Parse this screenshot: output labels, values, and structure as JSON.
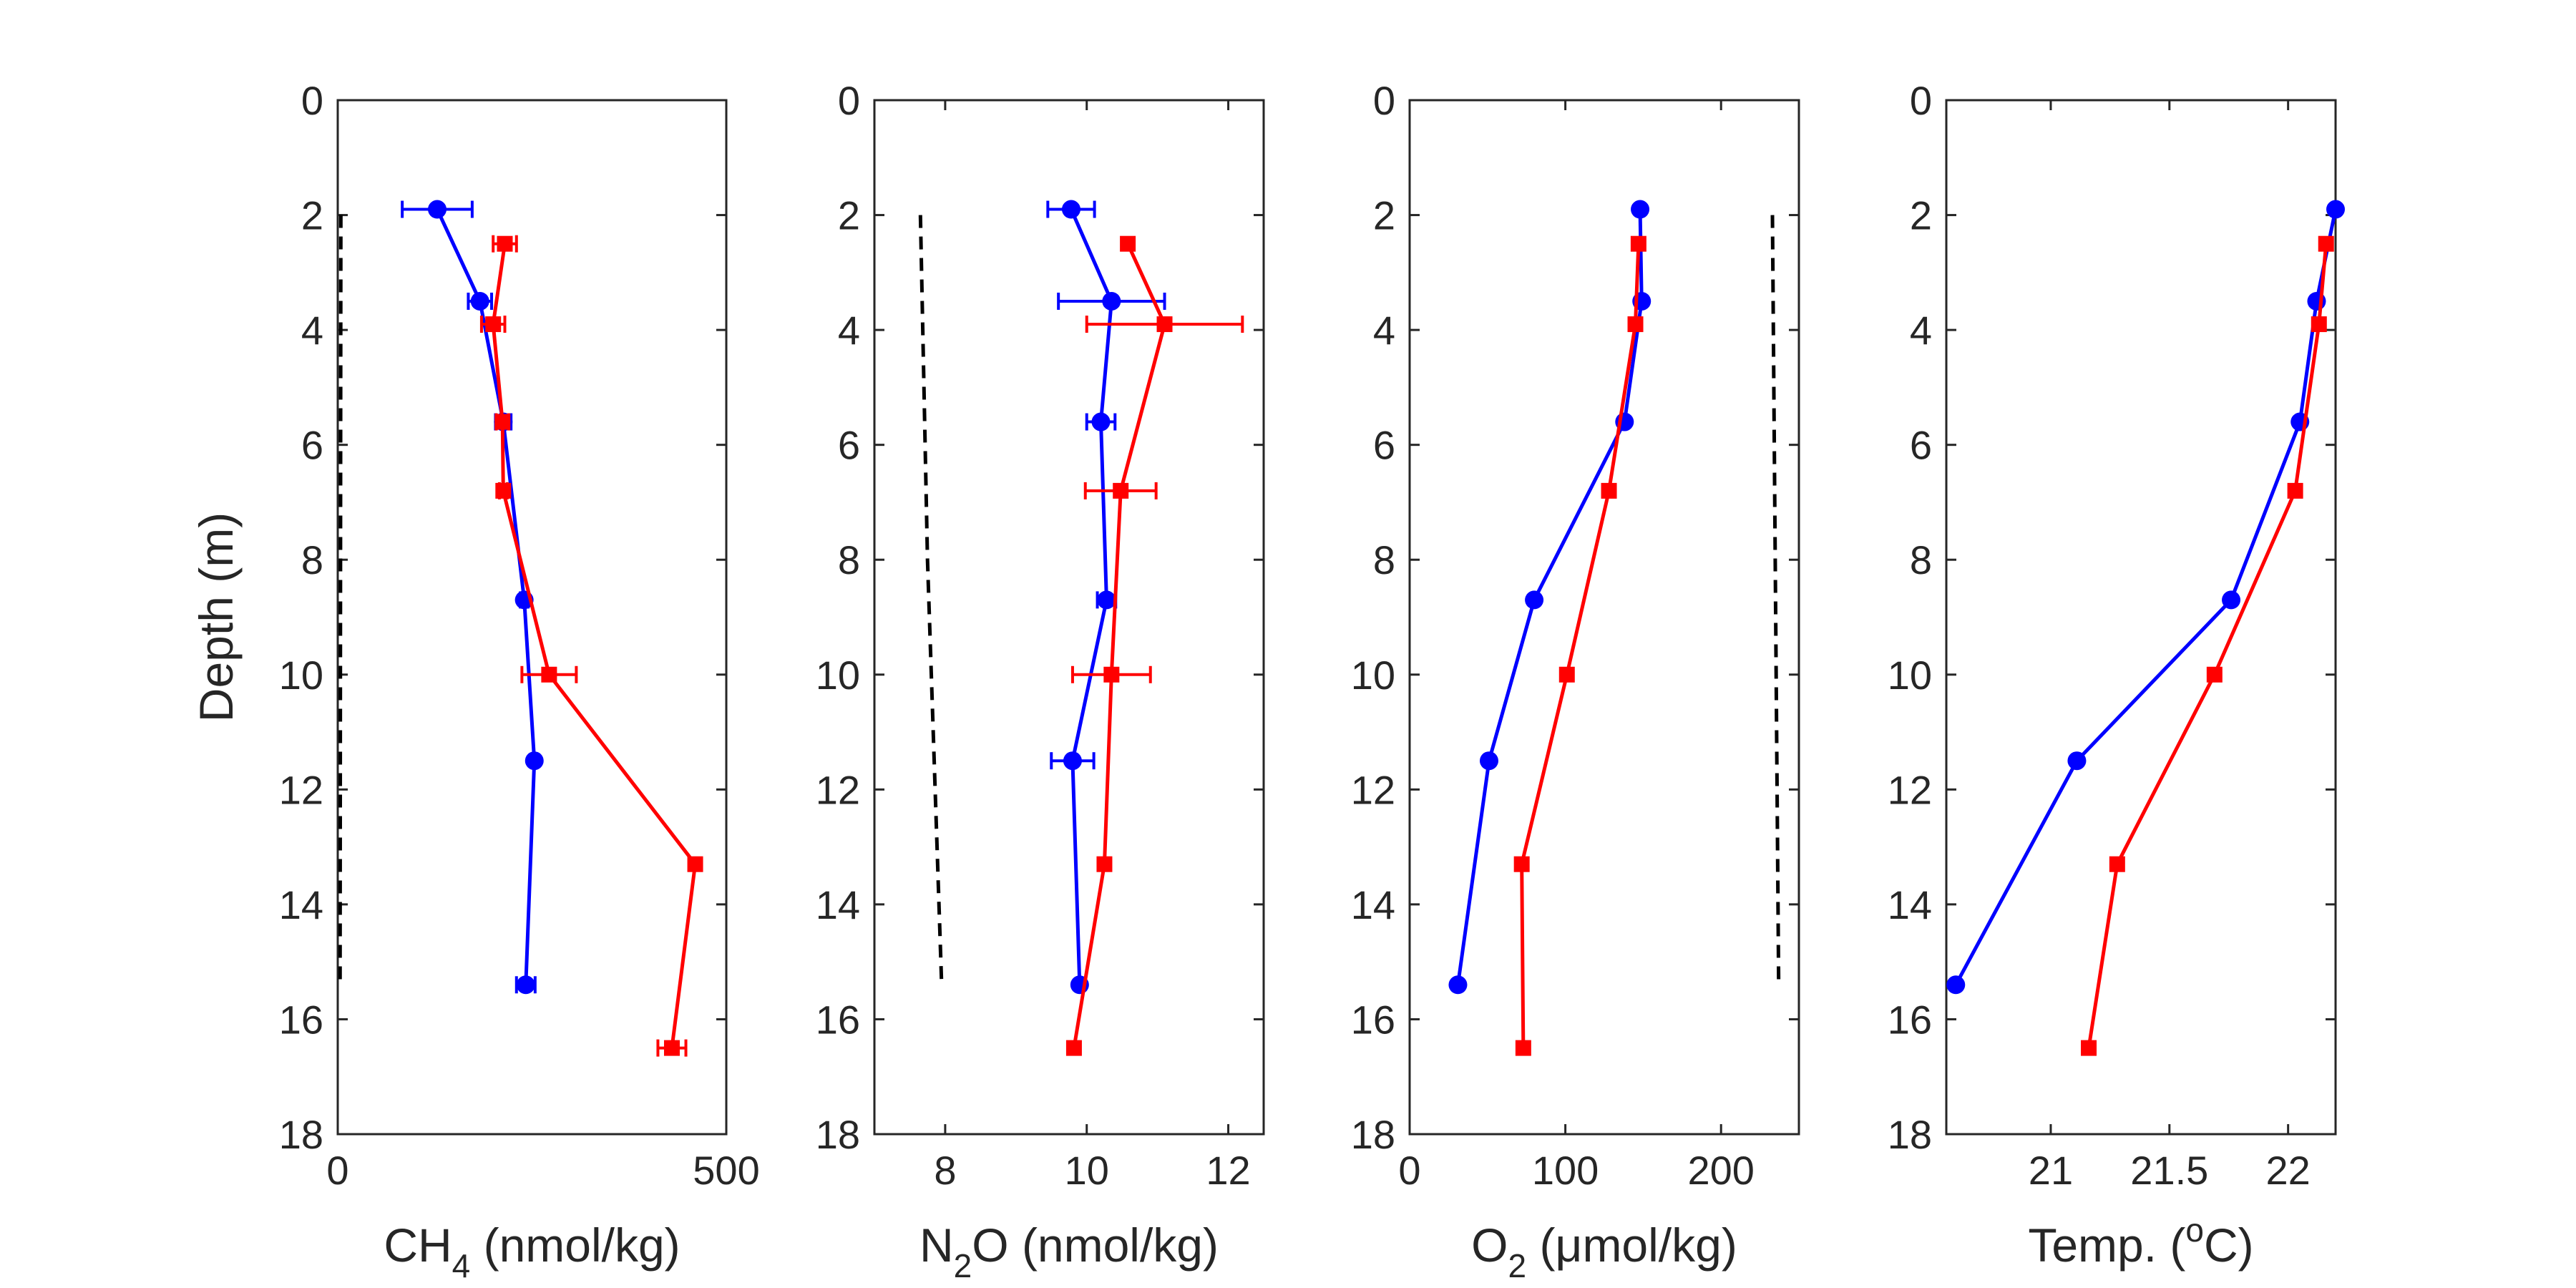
{
  "chart_data": [
    {
      "type": "line",
      "xlabel_parts": {
        "pre": "CH",
        "sub": "4",
        "post": " (nmol/kg)"
      },
      "ylabel": "Depth (m)",
      "xlim": [
        0,
        500
      ],
      "ylim": [
        0,
        18
      ],
      "y_reversed": true,
      "xticks": [
        0,
        500
      ],
      "yticks": [
        0,
        2,
        4,
        6,
        8,
        10,
        12,
        14,
        16,
        18
      ],
      "series": [
        {
          "color": "#0000ff",
          "marker": "circle",
          "points": [
            {
              "x": 128,
              "y": 1.9,
              "err": 45
            },
            {
              "x": 183,
              "y": 3.5,
              "err": 15
            },
            {
              "x": 213,
              "y": 5.6,
              "err": 10
            },
            {
              "x": 240,
              "y": 8.7,
              "err": 5
            },
            {
              "x": 253,
              "y": 11.5,
              "err": 0
            },
            {
              "x": 242,
              "y": 15.4,
              "err": 12
            }
          ]
        },
        {
          "color": "#ff0000",
          "marker": "square",
          "points": [
            {
              "x": 215,
              "y": 2.5,
              "err": 15
            },
            {
              "x": 200,
              "y": 3.9,
              "err": 15
            },
            {
              "x": 212,
              "y": 5.6,
              "err": 8
            },
            {
              "x": 213,
              "y": 6.8,
              "err": 5
            },
            {
              "x": 272,
              "y": 10.0,
              "err": 35
            },
            {
              "x": 460,
              "y": 13.3,
              "err": 0
            },
            {
              "x": 430,
              "y": 16.5,
              "err": 18
            }
          ]
        },
        {
          "color": "#000000",
          "line": "dashed",
          "points": [
            {
              "x": 4,
              "y": 2.0
            },
            {
              "x": 3,
              "y": 15.4
            }
          ]
        }
      ]
    },
    {
      "type": "line",
      "xlabel_parts": {
        "pre": "N",
        "sub": "2",
        "post": "O (nmol/kg)"
      },
      "xlim": [
        7,
        12.5
      ],
      "ylim": [
        0,
        18
      ],
      "y_reversed": true,
      "xticks": [
        8,
        10,
        12
      ],
      "yticks": [
        0,
        2,
        4,
        6,
        8,
        10,
        12,
        14,
        16,
        18
      ],
      "series": [
        {
          "color": "#0000ff",
          "marker": "circle",
          "points": [
            {
              "x": 9.78,
              "y": 1.9,
              "err": 0.33
            },
            {
              "x": 10.35,
              "y": 3.5,
              "err": 0.75
            },
            {
              "x": 10.2,
              "y": 5.6,
              "err": 0.2
            },
            {
              "x": 10.28,
              "y": 8.7,
              "err": 0.13
            },
            {
              "x": 9.8,
              "y": 11.5,
              "err": 0.3
            },
            {
              "x": 9.9,
              "y": 15.4,
              "err": 0
            }
          ]
        },
        {
          "color": "#ff0000",
          "marker": "square",
          "points": [
            {
              "x": 10.58,
              "y": 2.5,
              "err": 0
            },
            {
              "x": 11.1,
              "y": 3.9,
              "err": 1.1
            },
            {
              "x": 10.48,
              "y": 6.8,
              "err": 0.5
            },
            {
              "x": 10.35,
              "y": 10.0,
              "err": 0.55
            },
            {
              "x": 10.25,
              "y": 13.3,
              "err": 0
            },
            {
              "x": 9.82,
              "y": 16.5,
              "err": 0
            }
          ]
        },
        {
          "color": "#000000",
          "line": "dashed",
          "points": [
            {
              "x": 7.65,
              "y": 2.0
            },
            {
              "x": 7.75,
              "y": 8.0
            },
            {
              "x": 7.95,
              "y": 15.4
            }
          ]
        }
      ]
    },
    {
      "type": "line",
      "xlabel_parts": {
        "pre": "O",
        "sub": "2",
        "post": " (μmol/kg)"
      },
      "xlim": [
        0,
        250
      ],
      "ylim": [
        0,
        18
      ],
      "y_reversed": true,
      "xticks": [
        0,
        100,
        200
      ],
      "yticks": [
        0,
        2,
        4,
        6,
        8,
        10,
        12,
        14,
        16,
        18
      ],
      "series": [
        {
          "color": "#0000ff",
          "marker": "circle",
          "points": [
            {
              "x": 148,
              "y": 1.9
            },
            {
              "x": 149,
              "y": 3.5
            },
            {
              "x": 138,
              "y": 5.6
            },
            {
              "x": 80,
              "y": 8.7
            },
            {
              "x": 51,
              "y": 11.5
            },
            {
              "x": 31,
              "y": 15.4
            }
          ]
        },
        {
          "color": "#ff0000",
          "marker": "square",
          "points": [
            {
              "x": 147,
              "y": 2.5
            },
            {
              "x": 145,
              "y": 3.9
            },
            {
              "x": 128,
              "y": 6.8
            },
            {
              "x": 101,
              "y": 10.0
            },
            {
              "x": 72,
              "y": 13.3
            },
            {
              "x": 73,
              "y": 16.5
            }
          ]
        },
        {
          "color": "#000000",
          "line": "dashed",
          "points": [
            {
              "x": 233,
              "y": 2.0
            },
            {
              "x": 237,
              "y": 15.4
            }
          ]
        }
      ]
    },
    {
      "type": "line",
      "xlabel_parts": {
        "pre": "Temp. (",
        "sup": "o",
        "post": "C)"
      },
      "xlim": [
        20.56,
        22.2
      ],
      "ylim": [
        0,
        18
      ],
      "y_reversed": true,
      "xticks": [
        21,
        21.5,
        22
      ],
      "yticks": [
        0,
        2,
        4,
        6,
        8,
        10,
        12,
        14,
        16,
        18
      ],
      "series": [
        {
          "color": "#0000ff",
          "marker": "circle",
          "points": [
            {
              "x": 22.2,
              "y": 1.9
            },
            {
              "x": 22.12,
              "y": 3.5
            },
            {
              "x": 22.05,
              "y": 5.6
            },
            {
              "x": 21.76,
              "y": 8.7
            },
            {
              "x": 21.11,
              "y": 11.5
            },
            {
              "x": 20.6,
              "y": 15.4
            }
          ]
        },
        {
          "color": "#ff0000",
          "marker": "square",
          "points": [
            {
              "x": 22.16,
              "y": 2.5
            },
            {
              "x": 22.13,
              "y": 3.9
            },
            {
              "x": 22.03,
              "y": 6.8
            },
            {
              "x": 21.69,
              "y": 10.0
            },
            {
              "x": 21.28,
              "y": 13.3
            },
            {
              "x": 21.16,
              "y": 16.5
            }
          ]
        }
      ]
    }
  ]
}
